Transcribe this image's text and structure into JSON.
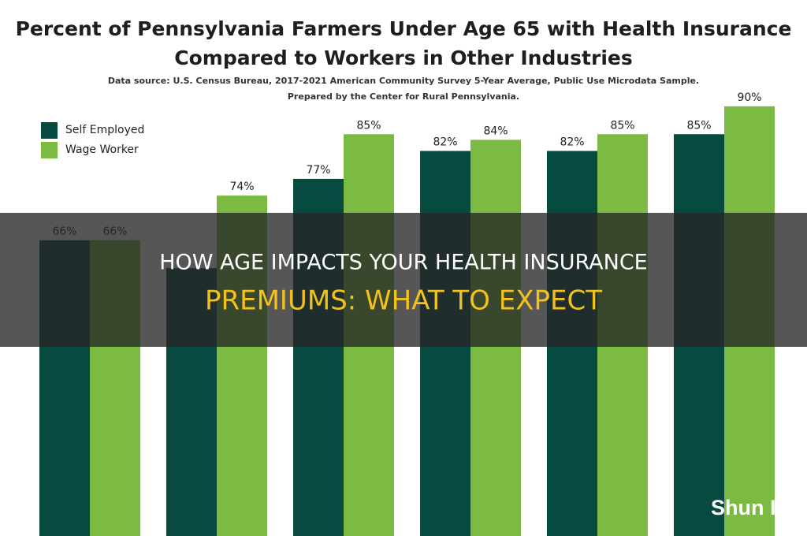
{
  "chart_data": {
    "type": "bar",
    "title": [
      "Percent of Pennsylvania Farmers Under Age 65 with Health Insurance",
      "Compared to Workers in Other Industries"
    ],
    "subtitle": [
      "Data source: U.S. Census Bureau, 2017-2021 American Community Survey 5-Year Average, Public Use Microdata Sample.",
      "Prepared by the Center for Rural Pennsylvania."
    ],
    "categories": [
      null,
      null,
      null,
      null,
      null,
      null
    ],
    "series": [
      {
        "name": "Self Employed",
        "color": "#064a40",
        "values": [
          66,
          61,
          77,
          82,
          82,
          85
        ],
        "value_labels": [
          "66%",
          null,
          "77%",
          "82%",
          "82%",
          "85%"
        ]
      },
      {
        "name": "Wage Worker",
        "color": "#7bbb43",
        "values": [
          66,
          74,
          85,
          84,
          85,
          90
        ],
        "value_labels": [
          "66%",
          "74%",
          "85%",
          "84%",
          "85%",
          "90%"
        ]
      }
    ],
    "ylim": [
      13,
      92
    ],
    "legend": "top-left"
  },
  "overlay": {
    "headline": [
      "HOW AGE IMPACTS YOUR HEALTH INSURANCE",
      "PREMIUMS: WHAT TO EXPECT"
    ],
    "watermark": "Shun Ins"
  }
}
